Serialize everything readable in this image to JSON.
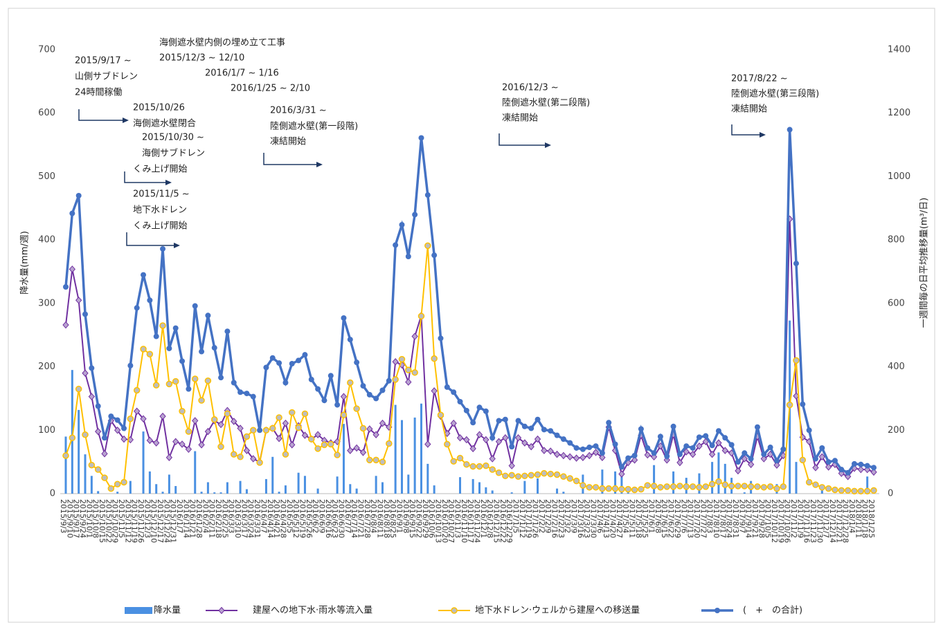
{
  "chart_data": {
    "type": "bar",
    "ylabel": "降水量(mm/週)",
    "y2label": "一週間毎の日平均推移量(m³/日)",
    "ylim": [
      0,
      700
    ],
    "yticks": [
      0,
      100,
      200,
      300,
      400,
      500,
      600,
      700
    ],
    "y2lim": [
      0,
      1400
    ],
    "y2ticks": [
      0,
      200,
      400,
      600,
      800,
      1000,
      1200,
      1400
    ],
    "grid": false,
    "legend": "bottom",
    "categories": [
      "2015/9/3",
      "2015/9/10",
      "2015/9/17",
      "2015/9/24",
      "2015/10/1",
      "2015/10/8",
      "2015/10/15",
      "2015/10/22",
      "2015/10/29",
      "2015/11/5",
      "2015/11/12",
      "2015/11/19",
      "2015/11/26",
      "2015/12/3",
      "2015/12/10",
      "2015/12/17",
      "2015/12/24",
      "2015/12/31",
      "2016/1/7",
      "2016/1/14",
      "2016/1/21",
      "2016/1/28",
      "2016/2/4",
      "2016/2/11",
      "2016/2/18",
      "2016/2/25",
      "2016/3/3",
      "2016/3/10",
      "2016/3/17",
      "2016/3/24",
      "2016/3/31",
      "2016/4/7",
      "2016/4/14",
      "2016/4/21",
      "2016/4/28",
      "2016/5/5",
      "2016/5/12",
      "2016/5/19",
      "2016/5/26",
      "2016/6/2",
      "2016/6/9",
      "2016/6/16",
      "2016/6/23",
      "2016/6/30",
      "2016/7/7",
      "2016/7/14",
      "2016/7/21",
      "2016/7/28",
      "2016/8/4",
      "2016/8/11",
      "2016/8/18",
      "2016/8/25",
      "2016/9/1",
      "2016/9/8",
      "2016/9/15",
      "2016/9/22",
      "2016/9/29",
      "2016/10/6",
      "2016/10/13",
      "2016/10/20",
      "2016/10/27",
      "2016/11/3",
      "2016/11/10",
      "2016/11/17",
      "2016/11/24",
      "2016/12/1",
      "2016/12/8",
      "2016/12/15",
      "2016/12/22",
      "2016/12/29",
      "2017/1/5",
      "2017/1/12",
      "2017/1/19",
      "2017/1/26",
      "2017/2/2",
      "2017/2/9",
      "2017/2/16",
      "2017/2/23",
      "2017/3/2",
      "2017/3/9",
      "2017/3/16",
      "2017/3/23",
      "2017/3/30",
      "2017/4/6",
      "2017/4/13",
      "2017/4/20",
      "2017/4/27",
      "2017/5/4",
      "2017/5/11",
      "2017/5/18",
      "2017/5/25",
      "2017/6/1",
      "2017/6/8",
      "2017/6/15",
      "2017/6/22",
      "2017/6/29",
      "2017/7/6",
      "2017/7/13",
      "2017/7/20",
      "2017/7/27",
      "2017/8/3",
      "2017/8/10",
      "2017/8/17",
      "2017/8/24",
      "2017/8/31",
      "2017/9/7",
      "2017/9/14",
      "2017/9/21",
      "2017/9/28",
      "2017/10/5",
      "2017/10/12",
      "2017/10/19",
      "2017/10/26",
      "2017/11/2",
      "2017/11/9",
      "2017/11/16",
      "2017/11/23",
      "2017/11/30",
      "2017/12/7",
      "2017/12/14",
      "2017/12/21",
      "2017/12/28",
      "2018/1/4",
      "2018/1/11",
      "2018/1/18",
      "2018/1/25"
    ],
    "series": [
      {
        "name": "降水量",
        "type": "bar",
        "color": "#4a90e2",
        "values": [
          90,
          195,
          132,
          62,
          28,
          4,
          0,
          0,
          3,
          0,
          20,
          0,
          98,
          35,
          15,
          3,
          30,
          12,
          0,
          0,
          67,
          3,
          18,
          2,
          2,
          18,
          0,
          20,
          7,
          0,
          0,
          23,
          58,
          3,
          13,
          0,
          33,
          28,
          0,
          8,
          0,
          0,
          27,
          110,
          15,
          8,
          0,
          0,
          28,
          18,
          0,
          140,
          116,
          30,
          120,
          142,
          47,
          13,
          0,
          0,
          0,
          26,
          0,
          23,
          18,
          10,
          5,
          0,
          0,
          2,
          0,
          20,
          0,
          24,
          0,
          0,
          8,
          3,
          0,
          0,
          30,
          0,
          0,
          38,
          0,
          35,
          28,
          2,
          0,
          0,
          0,
          45,
          0,
          0,
          35,
          0,
          25,
          0,
          32,
          0,
          50,
          65,
          47,
          25,
          0,
          2,
          20,
          0,
          0,
          0,
          15,
          0,
          273,
          50,
          0,
          0,
          0,
          8,
          0,
          0,
          0,
          0,
          0,
          0,
          27,
          0
        ]
      },
      {
        "name": "建屋への地下水·雨水等流入量",
        "type": "line",
        "axis": "y2",
        "color": "#7030a0",
        "marker": "diamond",
        "values": [
          532,
          708,
          610,
          380,
          306,
          196,
          126,
          230,
          200,
          172,
          170,
          260,
          236,
          168,
          160,
          244,
          114,
          164,
          156,
          140,
          230,
          154,
          196,
          230,
          218,
          262,
          228,
          206,
          136,
          110,
          100,
          200,
          206,
          174,
          222,
          154,
          214,
          184,
          172,
          186,
          168,
          160,
          164,
          306,
          136,
          144,
          130,
          204,
          186,
          222,
          210,
          416,
          406,
          352,
          496,
          562,
          156,
          324,
          244,
          190,
          222,
          176,
          170,
          142,
          186,
          170,
          110,
          164,
          176,
          88,
          176,
          160,
          148,
          172,
          136,
          134,
          124,
          120,
          116,
          112,
          114,
          120,
          130,
          114,
          210,
          136,
          62,
          98,
          106,
          184,
          122,
          116,
          150,
          106,
          186,
          98,
          132,
          124,
          150,
          164,
          124,
          160,
          136,
          128,
          72,
          110,
          92,
          180,
          110,
          124,
          90,
          120,
          866,
          308,
          178,
          164,
          82,
          116,
          84,
          92,
          64,
          54,
          80,
          76,
          76,
          68
        ]
      },
      {
        "name": "地下水ドレン·ウェルから建屋への移送量",
        "type": "line",
        "axis": "y2",
        "color": "#ffc000",
        "marker": "circle",
        "values": [
          120,
          176,
          330,
          186,
          90,
          76,
          50,
          16,
          30,
          36,
          236,
          326,
          456,
          440,
          342,
          530,
          346,
          354,
          260,
          196,
          362,
          294,
          356,
          234,
          148,
          252,
          124,
          116,
          180,
          200,
          98,
          200,
          206,
          240,
          124,
          256,
          208,
          252,
          172,
          142,
          154,
          156,
          122,
          248,
          350,
          268,
          206,
          106,
          106,
          100,
          158,
          360,
          424,
          390,
          382,
          560,
          782,
          426,
          248,
          156,
          102,
          112,
          92,
          86,
          86,
          88,
          76,
          66,
          56,
          58,
          54,
          56,
          58,
          60,
          64,
          62,
          60,
          54,
          48,
          40,
          26,
          20,
          20,
          16,
          16,
          16,
          14,
          14,
          12,
          14,
          26,
          24,
          20,
          22,
          22,
          24,
          22,
          22,
          20,
          22,
          30,
          38,
          28,
          24,
          24,
          24,
          22,
          22,
          20,
          22,
          16,
          22,
          280,
          420,
          106,
          36,
          28,
          20,
          16,
          12,
          10,
          10,
          8,
          8,
          8,
          10
        ]
      },
      {
        "name": "(　+　の合計)",
        "type": "line",
        "axis": "y2",
        "color": "#4472c4",
        "marker": "dot",
        "values": [
          652,
          884,
          940,
          566,
          396,
          276,
          176,
          244,
          232,
          206,
          404,
          586,
          690,
          610,
          496,
          772,
          458,
          522,
          418,
          330,
          592,
          448,
          562,
          460,
          366,
          512,
          350,
          320,
          316,
          306,
          200,
          398,
          428,
          412,
          350,
          410,
          420,
          438,
          360,
          330,
          294,
          372,
          280,
          554,
          486,
          414,
          340,
          312,
          300,
          326,
          356,
          784,
          848,
          748,
          880,
          1122,
          942,
          752,
          490,
          336,
          320,
          290,
          262,
          224,
          272,
          260,
          176,
          230,
          234,
          148,
          230,
          212,
          206,
          234,
          202,
          198,
          184,
          172,
          160,
          144,
          140,
          146,
          150,
          128,
          224,
          156,
          84,
          112,
          120,
          204,
          144,
          128,
          180,
          118,
          212,
          124,
          150,
          144,
          178,
          182,
          152,
          198,
          176,
          154,
          100,
          128,
          110,
          210,
          124,
          146,
          104,
          140,
          1148,
          726,
          282,
          200,
          110,
          144,
          100,
          104,
          76,
          66,
          94,
          92,
          88,
          82
        ]
      }
    ],
    "annotations": [
      {
        "lines": [
          "2015/9/17 ~",
          "山側サブドレン",
          "24時間稼働"
        ]
      },
      {
        "lines": [
          "2015/10/26",
          "海側遮水壁閉合"
        ]
      },
      {
        "lines": [
          "2015/10/30 ~",
          "海側サブドレン",
          "くみ上げ開始"
        ]
      },
      {
        "lines": [
          "2015/11/5 ~",
          "地下水ドレン",
          "くみ上げ開始"
        ]
      },
      {
        "lines": [
          "海側遮水壁内側の埋め立て工事",
          "2015/12/3 ~ 12/10",
          "2016/1/7 ~ 1/16",
          "2016/1/25 ~ 2/10"
        ]
      },
      {
        "lines": [
          "2016/3/31 ~",
          "陸側遮水壁(第一段階)",
          "凍結開始"
        ]
      },
      {
        "lines": [
          "2016/12/3 ~",
          "陸側遮水壁(第二段階)",
          "凍結開始"
        ]
      },
      {
        "lines": [
          "2017/8/22 ~",
          "陸側遮水壁(第三段階)",
          "凍結開始"
        ]
      }
    ]
  }
}
